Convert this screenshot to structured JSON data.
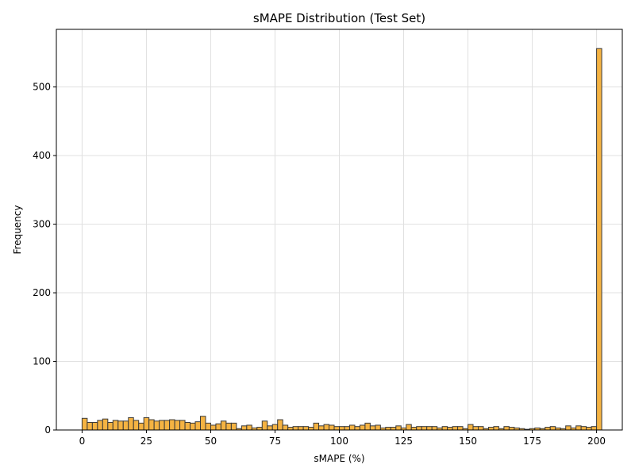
{
  "chart_data": {
    "type": "bar",
    "title": "sMAPE Distribution (Test Set)",
    "xlabel": "sMAPE (%)",
    "ylabel": "Frequency",
    "xlim": [
      -10,
      210
    ],
    "ylim": [
      0,
      584
    ],
    "xticks": [
      0,
      25,
      50,
      75,
      100,
      125,
      150,
      175,
      200
    ],
    "yticks": [
      0,
      100,
      200,
      300,
      400,
      500
    ],
    "grid": true,
    "bin_width": 2,
    "bins_start": 0,
    "values": [
      17,
      11,
      11,
      14,
      16,
      11,
      14,
      13,
      13,
      18,
      14,
      10,
      18,
      15,
      13,
      14,
      14,
      15,
      14,
      14,
      11,
      10,
      12,
      20,
      10,
      7,
      9,
      13,
      10,
      10,
      2,
      6,
      7,
      3,
      4,
      13,
      6,
      8,
      15,
      7,
      4,
      5,
      5,
      5,
      4,
      10,
      6,
      8,
      7,
      5,
      5,
      5,
      7,
      5,
      7,
      10,
      6,
      7,
      3,
      4,
      4,
      6,
      3,
      8,
      4,
      5,
      5,
      5,
      5,
      3,
      5,
      4,
      5,
      5,
      2,
      8,
      5,
      5,
      2,
      4,
      5,
      2,
      5,
      4,
      3,
      2,
      1,
      2,
      3,
      2,
      4,
      5,
      3,
      2,
      6,
      3,
      6,
      5,
      4,
      5,
      556
    ],
    "colors": {
      "bar_fill": "#f5b342",
      "bar_edge": "#3a3a3a",
      "grid": "#e0e0e0"
    }
  }
}
